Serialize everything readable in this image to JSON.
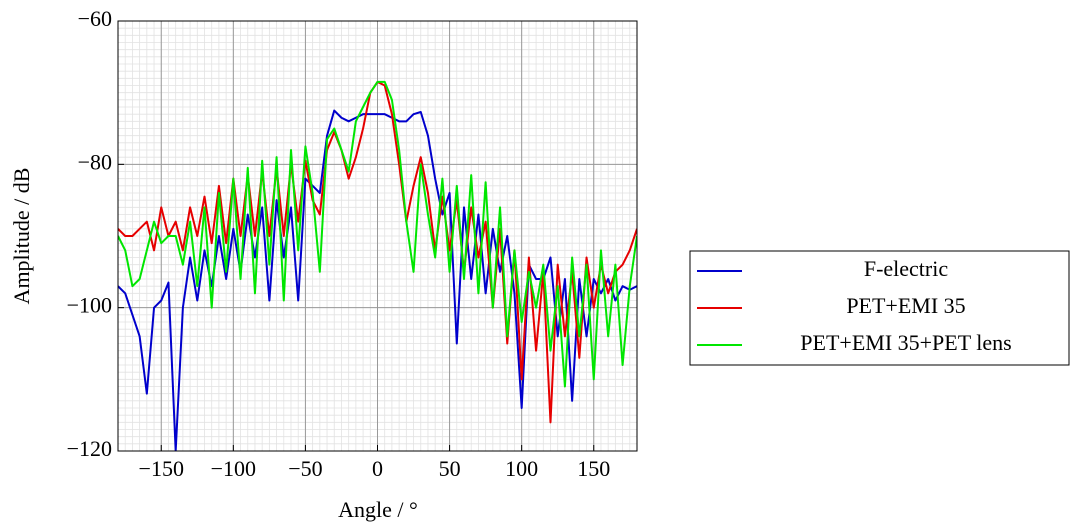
{
  "chart_data": {
    "type": "line",
    "xlabel": "Angle / °",
    "ylabel": "Amplitude / dB",
    "xlim": [
      -180,
      180
    ],
    "ylim": [
      -120,
      -60
    ],
    "xticks": [
      {
        "value": -150,
        "label": "−150"
      },
      {
        "value": -100,
        "label": "−100"
      },
      {
        "value": -50,
        "label": "−50"
      },
      0,
      50,
      100,
      150
    ],
    "yticks": [
      {
        "value": -120,
        "label": "−120"
      },
      {
        "value": -100,
        "label": "−100"
      },
      {
        "value": -80,
        "label": "−80"
      },
      {
        "value": -60,
        "label": "−60"
      }
    ],
    "grid": true,
    "minor_grid": true,
    "legend": "right",
    "x": [
      -180,
      -175,
      -170,
      -165,
      -160,
      -155,
      -150,
      -145,
      -140,
      -135,
      -130,
      -125,
      -120,
      -115,
      -110,
      -105,
      -100,
      -95,
      -90,
      -85,
      -80,
      -75,
      -70,
      -65,
      -60,
      -55,
      -50,
      -45,
      -40,
      -35,
      -30,
      -25,
      -20,
      -15,
      -10,
      -5,
      0,
      5,
      10,
      15,
      20,
      25,
      30,
      35,
      40,
      45,
      50,
      55,
      60,
      65,
      70,
      75,
      80,
      85,
      90,
      95,
      100,
      105,
      110,
      115,
      120,
      125,
      130,
      135,
      140,
      145,
      150,
      155,
      160,
      165,
      170,
      175,
      180
    ],
    "series": [
      {
        "name": "F-electric",
        "color": "#0000cc",
        "values": [
          -97,
          -98,
          -101,
          -104,
          -112,
          -100,
          -99,
          -96.5,
          -120,
          -100,
          -93,
          -99,
          -92,
          -97,
          -90,
          -96,
          -89,
          -95,
          -87,
          -93,
          -86,
          -99,
          -85,
          -93,
          -86,
          -99,
          -82,
          -83,
          -84,
          -76,
          -72.5,
          -73.5,
          -74,
          -73.5,
          -73,
          -73,
          -73,
          -73,
          -73.5,
          -74,
          -74,
          -73,
          -72.7,
          -76,
          -82,
          -87,
          -84,
          -105,
          -86,
          -96,
          -87,
          -98,
          -89,
          -95,
          -90,
          -98,
          -114,
          -94,
          -96,
          -96,
          -93,
          -104,
          -96,
          -113,
          -96,
          -104,
          -96,
          -98,
          -96,
          -99,
          -97,
          -97.5,
          -97
        ]
      },
      {
        "name": "PET+EMI 35",
        "color": "#e60000",
        "values": [
          -89,
          -90,
          -90,
          -89,
          -88,
          -92,
          -86,
          -90,
          -88,
          -92,
          -86,
          -90,
          -84.5,
          -91,
          -83,
          -91,
          -82,
          -90,
          -81.5,
          -90,
          -81,
          -90,
          -80.5,
          -90,
          -80,
          -88,
          -79.5,
          -85,
          -87,
          -78,
          -75.5,
          -78,
          -82,
          -79,
          -75,
          -70,
          -68.5,
          -69,
          -73,
          -80,
          -88,
          -83,
          -79,
          -84,
          -92,
          -84.5,
          -92,
          -85,
          -95,
          -86,
          -93,
          -88,
          -100,
          -89,
          -105,
          -92,
          -110,
          -93,
          -106,
          -95,
          -116,
          -94,
          -104,
          -95,
          -107,
          -93,
          -100,
          -94,
          -98,
          -95,
          -94,
          -92,
          -89
        ]
      },
      {
        "name": "PET+EMI 35+PET lens",
        "color": "#00e600",
        "values": [
          -90,
          -92,
          -97,
          -96,
          -92,
          -88,
          -91,
          -90,
          -90,
          -94,
          -88,
          -97,
          -86,
          -100,
          -84,
          -95,
          -82,
          -96,
          -80.5,
          -98,
          -79.5,
          -94,
          -79,
          -99,
          -78,
          -92,
          -77.5,
          -84,
          -95,
          -76.5,
          -75,
          -78,
          -81,
          -74,
          -72,
          -70,
          -68.5,
          -68.5,
          -71,
          -78,
          -88,
          -95,
          -80,
          -87,
          -93,
          -82,
          -95,
          -83,
          -96,
          -81.5,
          -98,
          -82.5,
          -100,
          -86,
          -104,
          -92,
          -102,
          -95,
          -100,
          -94,
          -106,
          -97,
          -111,
          -93,
          -104,
          -94,
          -110,
          -92,
          -104,
          -94,
          -108,
          -97,
          -90
        ]
      }
    ]
  }
}
